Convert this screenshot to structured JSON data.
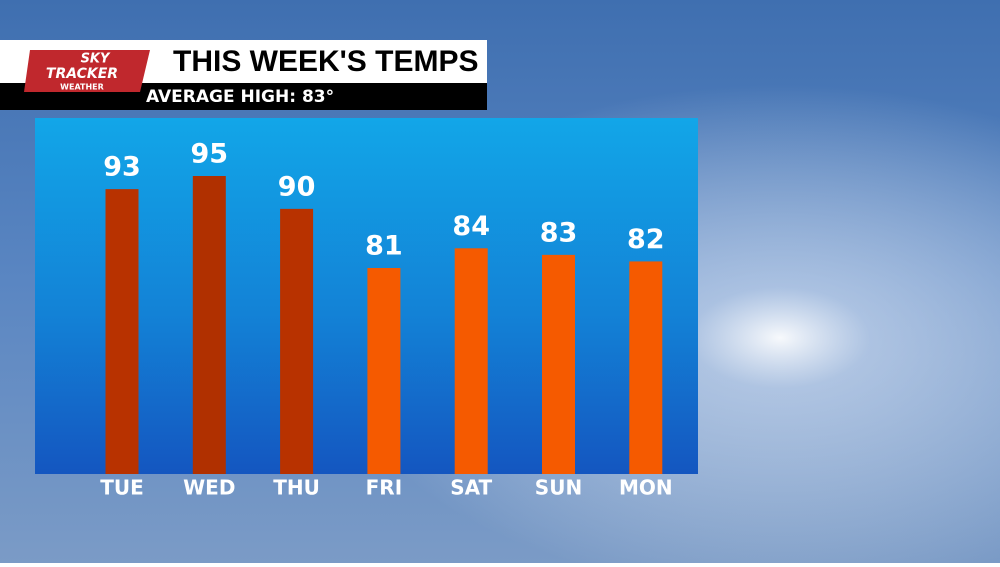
{
  "logo": {
    "line1": "SKY",
    "line2": "TRACKER",
    "line3": "WEATHER"
  },
  "chart_data": {
    "type": "bar",
    "title": "THIS WEEK'S TEMPS",
    "subtitle": "AVERAGE HIGH: 83°",
    "categories": [
      "TUE",
      "WED",
      "THU",
      "FRI",
      "SAT",
      "SUN",
      "MON"
    ],
    "values": [
      93,
      95,
      90,
      81,
      84,
      83,
      82
    ],
    "colors": [
      "#b83200",
      "#b03000",
      "#b83200",
      "#f55a00",
      "#f55a00",
      "#f55a00",
      "#f55a00"
    ]
  }
}
